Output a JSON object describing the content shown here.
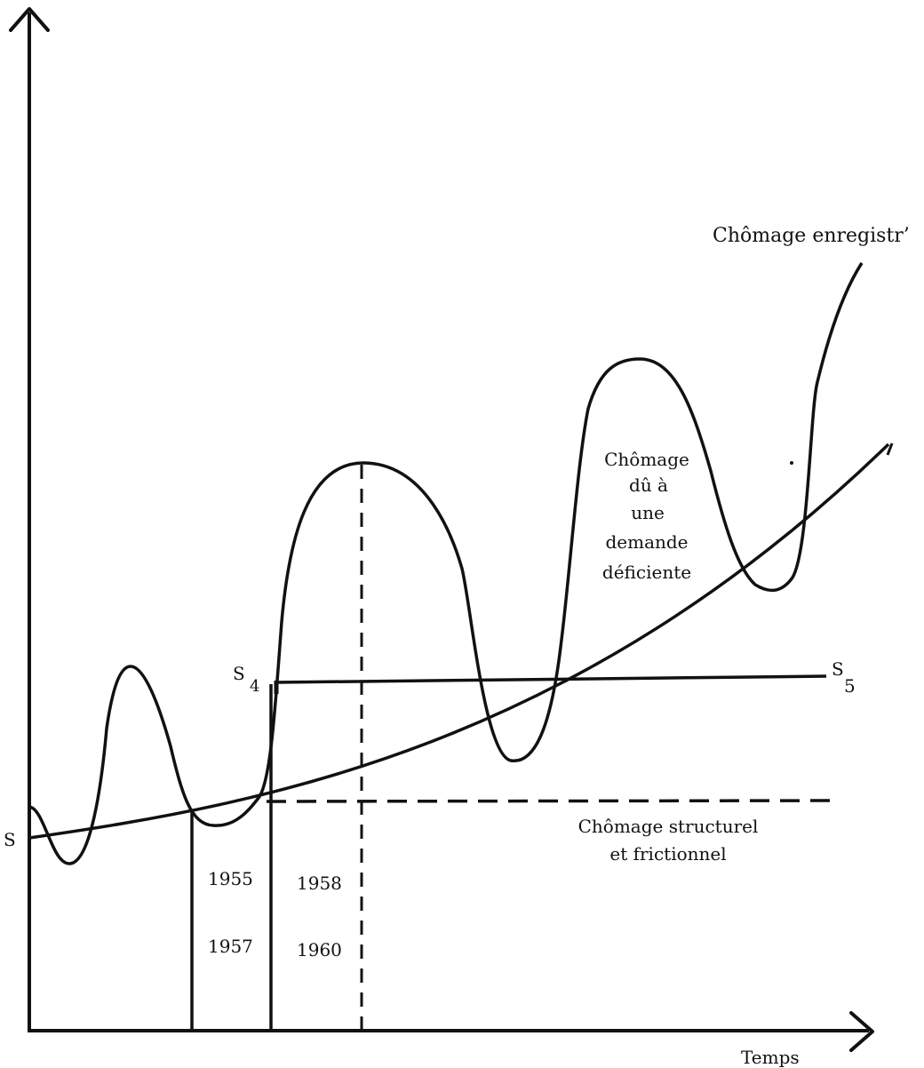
{
  "labels": {
    "chomage_enregistre": "Chômage enregistr’",
    "chomage_demande": [
      "Chômage",
      "dû à",
      "une",
      "demande",
      "déficiente"
    ],
    "chomage_structurel": [
      "Chômage structurel",
      "et frictionnel"
    ],
    "s_origin": "S",
    "s4_letter": "S",
    "s4_sub": "4",
    "s5_letter": "S",
    "s5_sub": "5",
    "year_1955": "1955",
    "year_1957": "1957",
    "year_1958": "1958",
    "year_1960": "1960",
    "x_axis": "Temps"
  }
}
